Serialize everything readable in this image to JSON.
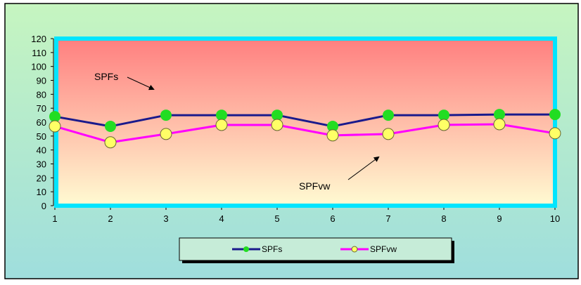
{
  "chart_data": {
    "type": "line",
    "title": "",
    "xlabel": "",
    "ylabel": "",
    "x": [
      1,
      2,
      3,
      4,
      5,
      6,
      7,
      8,
      9,
      10
    ],
    "ylim": [
      0,
      120
    ],
    "yticks": [
      0,
      10,
      20,
      30,
      40,
      50,
      60,
      70,
      80,
      90,
      100,
      110,
      120
    ],
    "grid": false,
    "legend_position": "bottom-center",
    "series": [
      {
        "name": "SPFs",
        "values": [
          64,
          57,
          65,
          65,
          65,
          57,
          65,
          65,
          65.5,
          65.5
        ],
        "line_color": "#1a1a8c",
        "marker_color": "#22dd22"
      },
      {
        "name": "SPFvw",
        "values": [
          57,
          45.5,
          51.5,
          58,
          58,
          50.5,
          51.5,
          58,
          58.5,
          52
        ],
        "line_color": "#ff00ff",
        "marker_color": "#ffff66"
      }
    ],
    "annotations": [
      {
        "text": "SPFs"
      },
      {
        "text": "SPFvw"
      }
    ],
    "colors": {
      "background_top": "#c6f5c0",
      "background_bottom": "#9fdedd",
      "plot_top": "#ff7f7f",
      "plot_bottom": "#fffbd2",
      "plot_border": "#00e5ff"
    }
  }
}
